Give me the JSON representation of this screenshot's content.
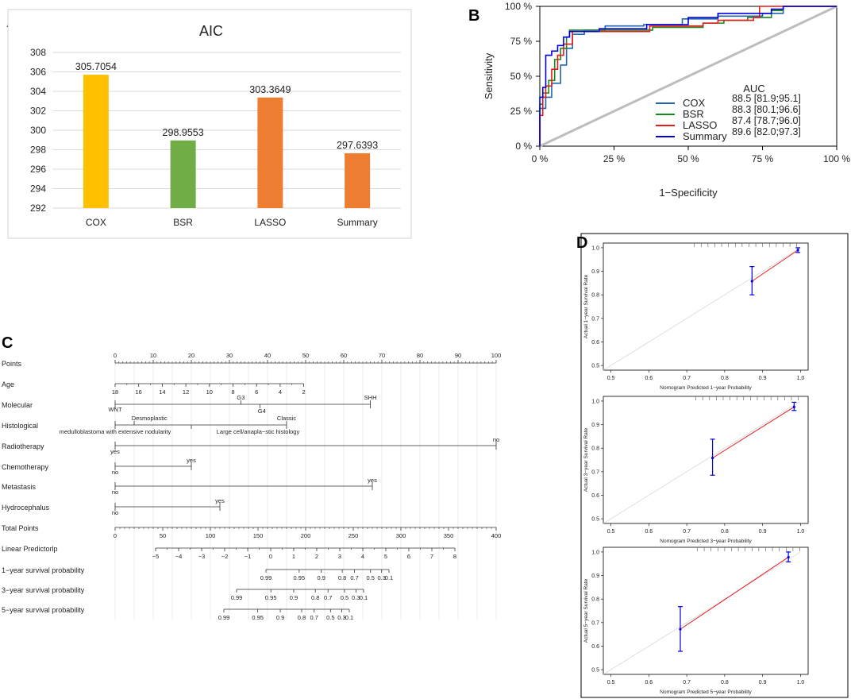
{
  "panels": {
    "a": "A",
    "b": "B",
    "c": "C",
    "d": "D"
  },
  "chart_data": [
    {
      "type": "bar",
      "title": "AIC",
      "categories": [
        "COX",
        "BSR",
        "LASSO",
        "Summary"
      ],
      "values": [
        305.7054,
        298.9553,
        303.3649,
        297.6393
      ],
      "value_labels": [
        "305.7054",
        "298.9553",
        "303.3649",
        "297.6393"
      ],
      "colors": [
        "#FFC000",
        "#70AD47",
        "#ED7D31",
        "#ED7D31"
      ],
      "yticks": [
        "292",
        "294",
        "296",
        "298",
        "300",
        "302",
        "304",
        "306",
        "308"
      ],
      "ylim": [
        292,
        308
      ]
    },
    {
      "type": "line",
      "xlabel": "1−Specificity",
      "ylabel": "Sensitivity",
      "ticks": [
        "0 %",
        "25 %",
        "50 %",
        "75 %",
        "100 %"
      ],
      "legend_title": "AUC",
      "series": [
        {
          "name": "COX",
          "auc": "88.5 [81.9;95.1]",
          "color": "#2166AC",
          "points": [
            [
              0,
              0
            ],
            [
              0,
              0.27
            ],
            [
              0.02,
              0.35
            ],
            [
              0.04,
              0.45
            ],
            [
              0.07,
              0.58
            ],
            [
              0.09,
              0.7
            ],
            [
              0.11,
              0.8
            ],
            [
              0.15,
              0.83
            ],
            [
              0.22,
              0.86
            ],
            [
              0.35,
              0.87
            ],
            [
              0.48,
              0.91
            ],
            [
              0.6,
              0.93
            ],
            [
              0.75,
              0.95
            ],
            [
              0.82,
              1.0
            ],
            [
              1,
              1
            ]
          ]
        },
        {
          "name": "BSR",
          "auc": "88.3 [80.1;96.6]",
          "color": "#1A8A1A",
          "points": [
            [
              0,
              0
            ],
            [
              0,
              0.3
            ],
            [
              0.01,
              0.38
            ],
            [
              0.03,
              0.47
            ],
            [
              0.05,
              0.62
            ],
            [
              0.07,
              0.7
            ],
            [
              0.09,
              0.78
            ],
            [
              0.1,
              0.83
            ],
            [
              0.2,
              0.83
            ],
            [
              0.38,
              0.85
            ],
            [
              0.55,
              0.88
            ],
            [
              0.62,
              0.9
            ],
            [
              0.7,
              0.92
            ],
            [
              0.78,
              0.97
            ],
            [
              0.82,
              1.0
            ],
            [
              1,
              1
            ]
          ]
        },
        {
          "name": "LASSO",
          "auc": "87.4 [78.7;96.0]",
          "color": "#E41A1C",
          "points": [
            [
              0,
              0
            ],
            [
              0,
              0.22
            ],
            [
              0.01,
              0.35
            ],
            [
              0.02,
              0.43
            ],
            [
              0.04,
              0.55
            ],
            [
              0.06,
              0.65
            ],
            [
              0.08,
              0.73
            ],
            [
              0.11,
              0.82
            ],
            [
              0.3,
              0.82
            ],
            [
              0.37,
              0.86
            ],
            [
              0.55,
              0.88
            ],
            [
              0.6,
              0.9
            ],
            [
              0.72,
              0.92
            ],
            [
              0.74,
              1.0
            ],
            [
              1,
              1
            ]
          ]
        },
        {
          "name": "Summary",
          "auc": "89.6 [82.0;97.3]",
          "color": "#0000DD",
          "points": [
            [
              0,
              0
            ],
            [
              0,
              0.35
            ],
            [
              0.01,
              0.42
            ],
            [
              0.02,
              0.65
            ],
            [
              0.04,
              0.68
            ],
            [
              0.06,
              0.72
            ],
            [
              0.08,
              0.78
            ],
            [
              0.1,
              0.82
            ],
            [
              0.2,
              0.84
            ],
            [
              0.36,
              0.87
            ],
            [
              0.5,
              0.92
            ],
            [
              0.6,
              0.95
            ],
            [
              0.78,
              0.98
            ],
            [
              0.82,
              1.0
            ],
            [
              1,
              1
            ]
          ]
        }
      ]
    },
    {
      "type": "table",
      "rows": [
        {
          "label": "Points",
          "ticks": [
            "0",
            "10",
            "20",
            "30",
            "40",
            "50",
            "60",
            "70",
            "80",
            "90",
            "100"
          ]
        },
        {
          "label": "Age",
          "ticks": [
            "18",
            "16",
            "14",
            "12",
            "10",
            "8",
            "6",
            "4",
            "2"
          ]
        },
        {
          "label": "Molecular",
          "texts": [
            "WNT",
            "G3",
            "G4",
            "SHH"
          ]
        },
        {
          "label": "Histological",
          "texts": [
            "Desmoplastic",
            "Classic",
            "medulloblastoma with extensive nodularity",
            "Large cell/anapla−stic histology"
          ]
        },
        {
          "label": "Radiotherapy",
          "texts": [
            "yes",
            "no"
          ]
        },
        {
          "label": "Chemotherapy",
          "texts": [
            "no",
            "yes"
          ]
        },
        {
          "label": "Metastasis",
          "texts": [
            "no",
            "yes"
          ]
        },
        {
          "label": "Hydrocephalus",
          "texts": [
            "no",
            "yes"
          ]
        },
        {
          "label": "Total Points",
          "ticks": [
            "0",
            "50",
            "100",
            "150",
            "200",
            "250",
            "300",
            "350",
            "400"
          ]
        },
        {
          "label": "Linear Predictorlp",
          "ticks": [
            "−5",
            "−4",
            "−3",
            "−2",
            "−1",
            "0",
            "1",
            "2",
            "3",
            "4",
            "5",
            "6",
            "7",
            "8"
          ]
        },
        {
          "label": "1−year survival probability",
          "ticks": [
            "0.99",
            "0.95",
            "0.9",
            "0.8",
            "0.7",
            "0.5",
            "0.3",
            "0.1"
          ]
        },
        {
          "label": "3−year survival probability",
          "ticks": [
            "0.99",
            "0.95",
            "0.9",
            "0.8",
            "0.7",
            "0.5",
            "0.3",
            "0.1"
          ]
        },
        {
          "label": "5−year survival probability",
          "ticks": [
            "0.99",
            "0.95",
            "0.9",
            "0.8",
            "0.7",
            "0.5",
            "0.3",
            "0.1"
          ]
        }
      ]
    },
    {
      "type": "scatter",
      "xticks": [
        "0.5",
        "0.6",
        "0.7",
        "0.8",
        "0.9",
        "1.0"
      ],
      "yticks": [
        "0.5",
        "0.6",
        "0.7",
        "0.8",
        "0.9",
        "1.0"
      ],
      "plots": [
        {
          "ylabel": "Actual 1−year Survival Rate",
          "xlabel": "Nomogram Predicted 1−year Probability",
          "points": [
            {
              "x": 0.872,
              "y": 0.858,
              "lo": 0.8,
              "hi": 0.92
            },
            {
              "x": 0.993,
              "y": 0.99,
              "lo": 0.98,
              "hi": 1.0
            }
          ]
        },
        {
          "ylabel": "Actual 3−year Survival Rate",
          "xlabel": "Nomogram Predicted 3−year Probability",
          "points": [
            {
              "x": 0.768,
              "y": 0.758,
              "lo": 0.685,
              "hi": 0.838
            },
            {
              "x": 0.983,
              "y": 0.975,
              "lo": 0.96,
              "hi": 0.995
            }
          ]
        },
        {
          "ylabel": "Actual 5−year Survival Rate",
          "xlabel": "Nomogram Predicted 5−year Probability",
          "points": [
            {
              "x": 0.683,
              "y": 0.672,
              "lo": 0.578,
              "hi": 0.768
            },
            {
              "x": 0.968,
              "y": 0.978,
              "lo": 0.958,
              "hi": 1.0
            }
          ]
        }
      ]
    }
  ]
}
